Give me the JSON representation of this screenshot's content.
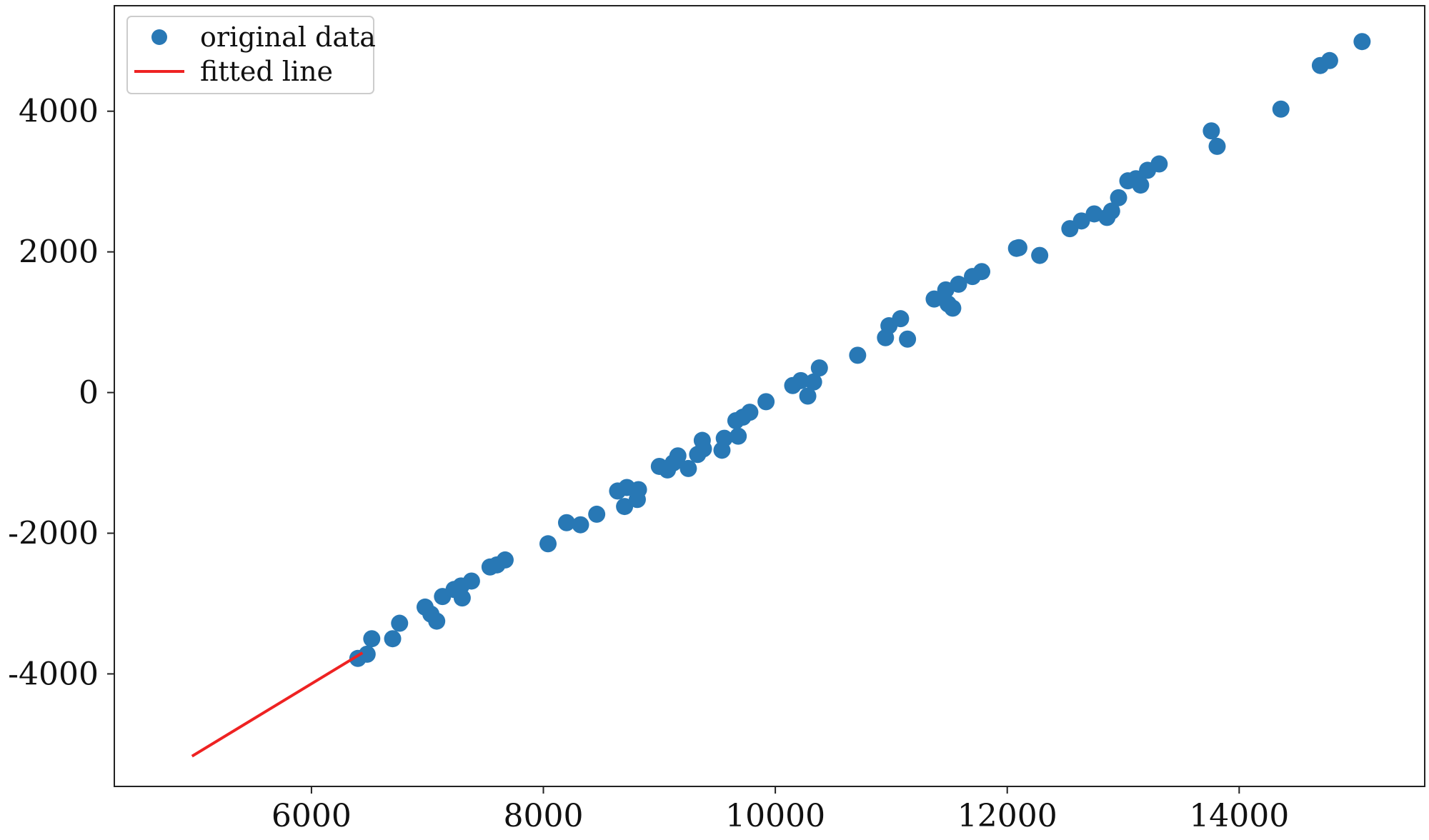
{
  "chart_data": {
    "type": "scatter",
    "title": "",
    "xlabel": "",
    "ylabel": "",
    "xlim": [
      4300,
      15600
    ],
    "ylim": [
      -5600,
      5500
    ],
    "xticks": [
      6000,
      8000,
      10000,
      12000,
      14000
    ],
    "xtick_labels": [
      "6000",
      "8000",
      "10000",
      "12000",
      "14000"
    ],
    "yticks": [
      -4000,
      -2000,
      0,
      2000,
      4000
    ],
    "ytick_labels": [
      "-4000",
      "-2000",
      "0",
      "2000",
      "4000"
    ],
    "grid": false,
    "legend": {
      "placement": "top-left",
      "entries": [
        {
          "label": "original data",
          "marker": "circle",
          "color": "#2878b5"
        },
        {
          "label": "fitted line",
          "marker": "line",
          "color": "#ee2222"
        }
      ]
    },
    "series": [
      {
        "name": "original data",
        "kind": "scatter",
        "color": "#2878b5",
        "points": [
          [
            6400,
            -3780
          ],
          [
            6480,
            -3720
          ],
          [
            6520,
            -3500
          ],
          [
            6700,
            -3500
          ],
          [
            6760,
            -3280
          ],
          [
            6980,
            -3050
          ],
          [
            7030,
            -3150
          ],
          [
            7080,
            -3250
          ],
          [
            7130,
            -2900
          ],
          [
            7230,
            -2800
          ],
          [
            7290,
            -2750
          ],
          [
            7300,
            -2920
          ],
          [
            7380,
            -2680
          ],
          [
            7540,
            -2480
          ],
          [
            7600,
            -2450
          ],
          [
            7670,
            -2380
          ],
          [
            8040,
            -2150
          ],
          [
            8200,
            -1850
          ],
          [
            8320,
            -1880
          ],
          [
            8460,
            -1730
          ],
          [
            8640,
            -1400
          ],
          [
            8700,
            -1620
          ],
          [
            8720,
            -1350
          ],
          [
            8810,
            -1520
          ],
          [
            8820,
            -1380
          ],
          [
            9000,
            -1050
          ],
          [
            9070,
            -1100
          ],
          [
            9120,
            -1000
          ],
          [
            9160,
            -900
          ],
          [
            9250,
            -1080
          ],
          [
            9330,
            -880
          ],
          [
            9370,
            -680
          ],
          [
            9380,
            -800
          ],
          [
            9540,
            -820
          ],
          [
            9560,
            -650
          ],
          [
            9660,
            -400
          ],
          [
            9680,
            -620
          ],
          [
            9720,
            -350
          ],
          [
            9780,
            -280
          ],
          [
            9920,
            -130
          ],
          [
            10150,
            100
          ],
          [
            10220,
            170
          ],
          [
            10280,
            -50
          ],
          [
            10330,
            150
          ],
          [
            10380,
            350
          ],
          [
            10710,
            530
          ],
          [
            10950,
            780
          ],
          [
            10980,
            950
          ],
          [
            11080,
            1050
          ],
          [
            11140,
            760
          ],
          [
            11370,
            1330
          ],
          [
            11470,
            1460
          ],
          [
            11490,
            1260
          ],
          [
            11530,
            1200
          ],
          [
            11580,
            1540
          ],
          [
            11700,
            1650
          ],
          [
            11780,
            1720
          ],
          [
            12080,
            2050
          ],
          [
            12100,
            2060
          ],
          [
            12280,
            1950
          ],
          [
            12540,
            2330
          ],
          [
            12640,
            2440
          ],
          [
            12750,
            2540
          ],
          [
            12860,
            2490
          ],
          [
            12900,
            2580
          ],
          [
            12960,
            2770
          ],
          [
            13040,
            3010
          ],
          [
            13110,
            3040
          ],
          [
            13150,
            2950
          ],
          [
            13210,
            3160
          ],
          [
            13310,
            3250
          ],
          [
            13760,
            3720
          ],
          [
            13810,
            3500
          ],
          [
            14360,
            4030
          ],
          [
            14700,
            4650
          ],
          [
            14780,
            4720
          ],
          [
            15060,
            4990
          ]
        ]
      },
      {
        "name": "fitted line",
        "kind": "line",
        "color": "#ee2222",
        "points": [
          [
            4970,
            -5170
          ],
          [
            6440,
            -3700
          ]
        ]
      }
    ]
  }
}
